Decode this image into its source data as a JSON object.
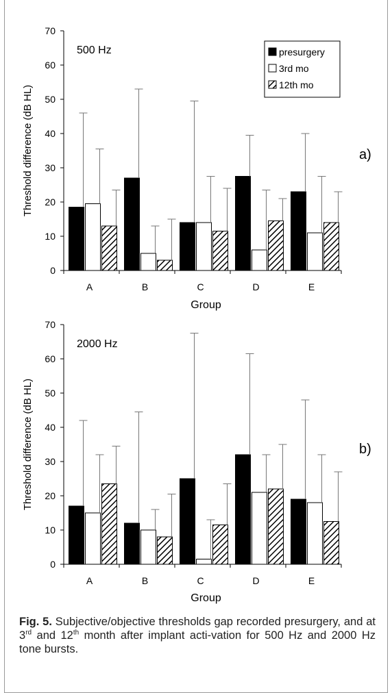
{
  "figure": {
    "legend": [
      "presurgery",
      "3rd mo",
      "12th mo"
    ],
    "caption": {
      "label": "Fig. 5.",
      "part1": " Subjective/objective thresholds gap recorded presurgery, and at 3",
      "sup1": "rd",
      "part2": " and 12",
      "sup2": "th",
      "part3": " month after implant acti-vation for 500 Hz and 2000 Hz tone bursts."
    }
  },
  "chart_data": [
    {
      "type": "bar",
      "title": "500 Hz",
      "panel_label": "a)",
      "xlabel": "Group",
      "ylabel": "Threshold difference (dB HL)",
      "ylim": [
        0,
        70
      ],
      "yticks": [
        0,
        10,
        20,
        30,
        40,
        50,
        60,
        70
      ],
      "categories": [
        "A",
        "B",
        "C",
        "D",
        "E"
      ],
      "legend_position": "top-right",
      "series": [
        {
          "name": "presurgery",
          "style": "solid",
          "color": "#000000",
          "values": [
            18.5,
            27,
            14,
            27.5,
            23
          ],
          "error_upper": [
            46,
            53,
            49.5,
            39.5,
            40
          ]
        },
        {
          "name": "3rd mo",
          "style": "open",
          "color": "#ffffff",
          "values": [
            19.5,
            5,
            14,
            6,
            11
          ],
          "error_upper": [
            35.5,
            13,
            27.5,
            23.5,
            27.5
          ]
        },
        {
          "name": "12th mo",
          "style": "hatched",
          "color": "#000000",
          "values": [
            13,
            3,
            11.5,
            14.5,
            14
          ],
          "error_upper": [
            23.5,
            15,
            24,
            21,
            23
          ]
        }
      ]
    },
    {
      "type": "bar",
      "title": "2000 Hz",
      "panel_label": "b)",
      "xlabel": "Group",
      "ylabel": "Threshold difference (dB HL)",
      "ylim": [
        0,
        70
      ],
      "yticks": [
        0,
        10,
        20,
        30,
        40,
        50,
        60,
        70
      ],
      "categories": [
        "A",
        "B",
        "C",
        "D",
        "E"
      ],
      "series": [
        {
          "name": "presurgery",
          "style": "solid",
          "color": "#000000",
          "values": [
            17,
            12,
            25,
            32,
            19
          ],
          "error_upper": [
            42,
            44.5,
            67.5,
            61.5,
            48
          ]
        },
        {
          "name": "3rd mo",
          "style": "open",
          "color": "#ffffff",
          "values": [
            15,
            10,
            1.5,
            21,
            18
          ],
          "error_upper": [
            32,
            16,
            13,
            32,
            32
          ]
        },
        {
          "name": "12th mo",
          "style": "hatched",
          "color": "#000000",
          "values": [
            23.5,
            8,
            11.5,
            22,
            12.5
          ],
          "error_upper": [
            34.5,
            20.5,
            23.5,
            35,
            27
          ]
        }
      ]
    }
  ]
}
